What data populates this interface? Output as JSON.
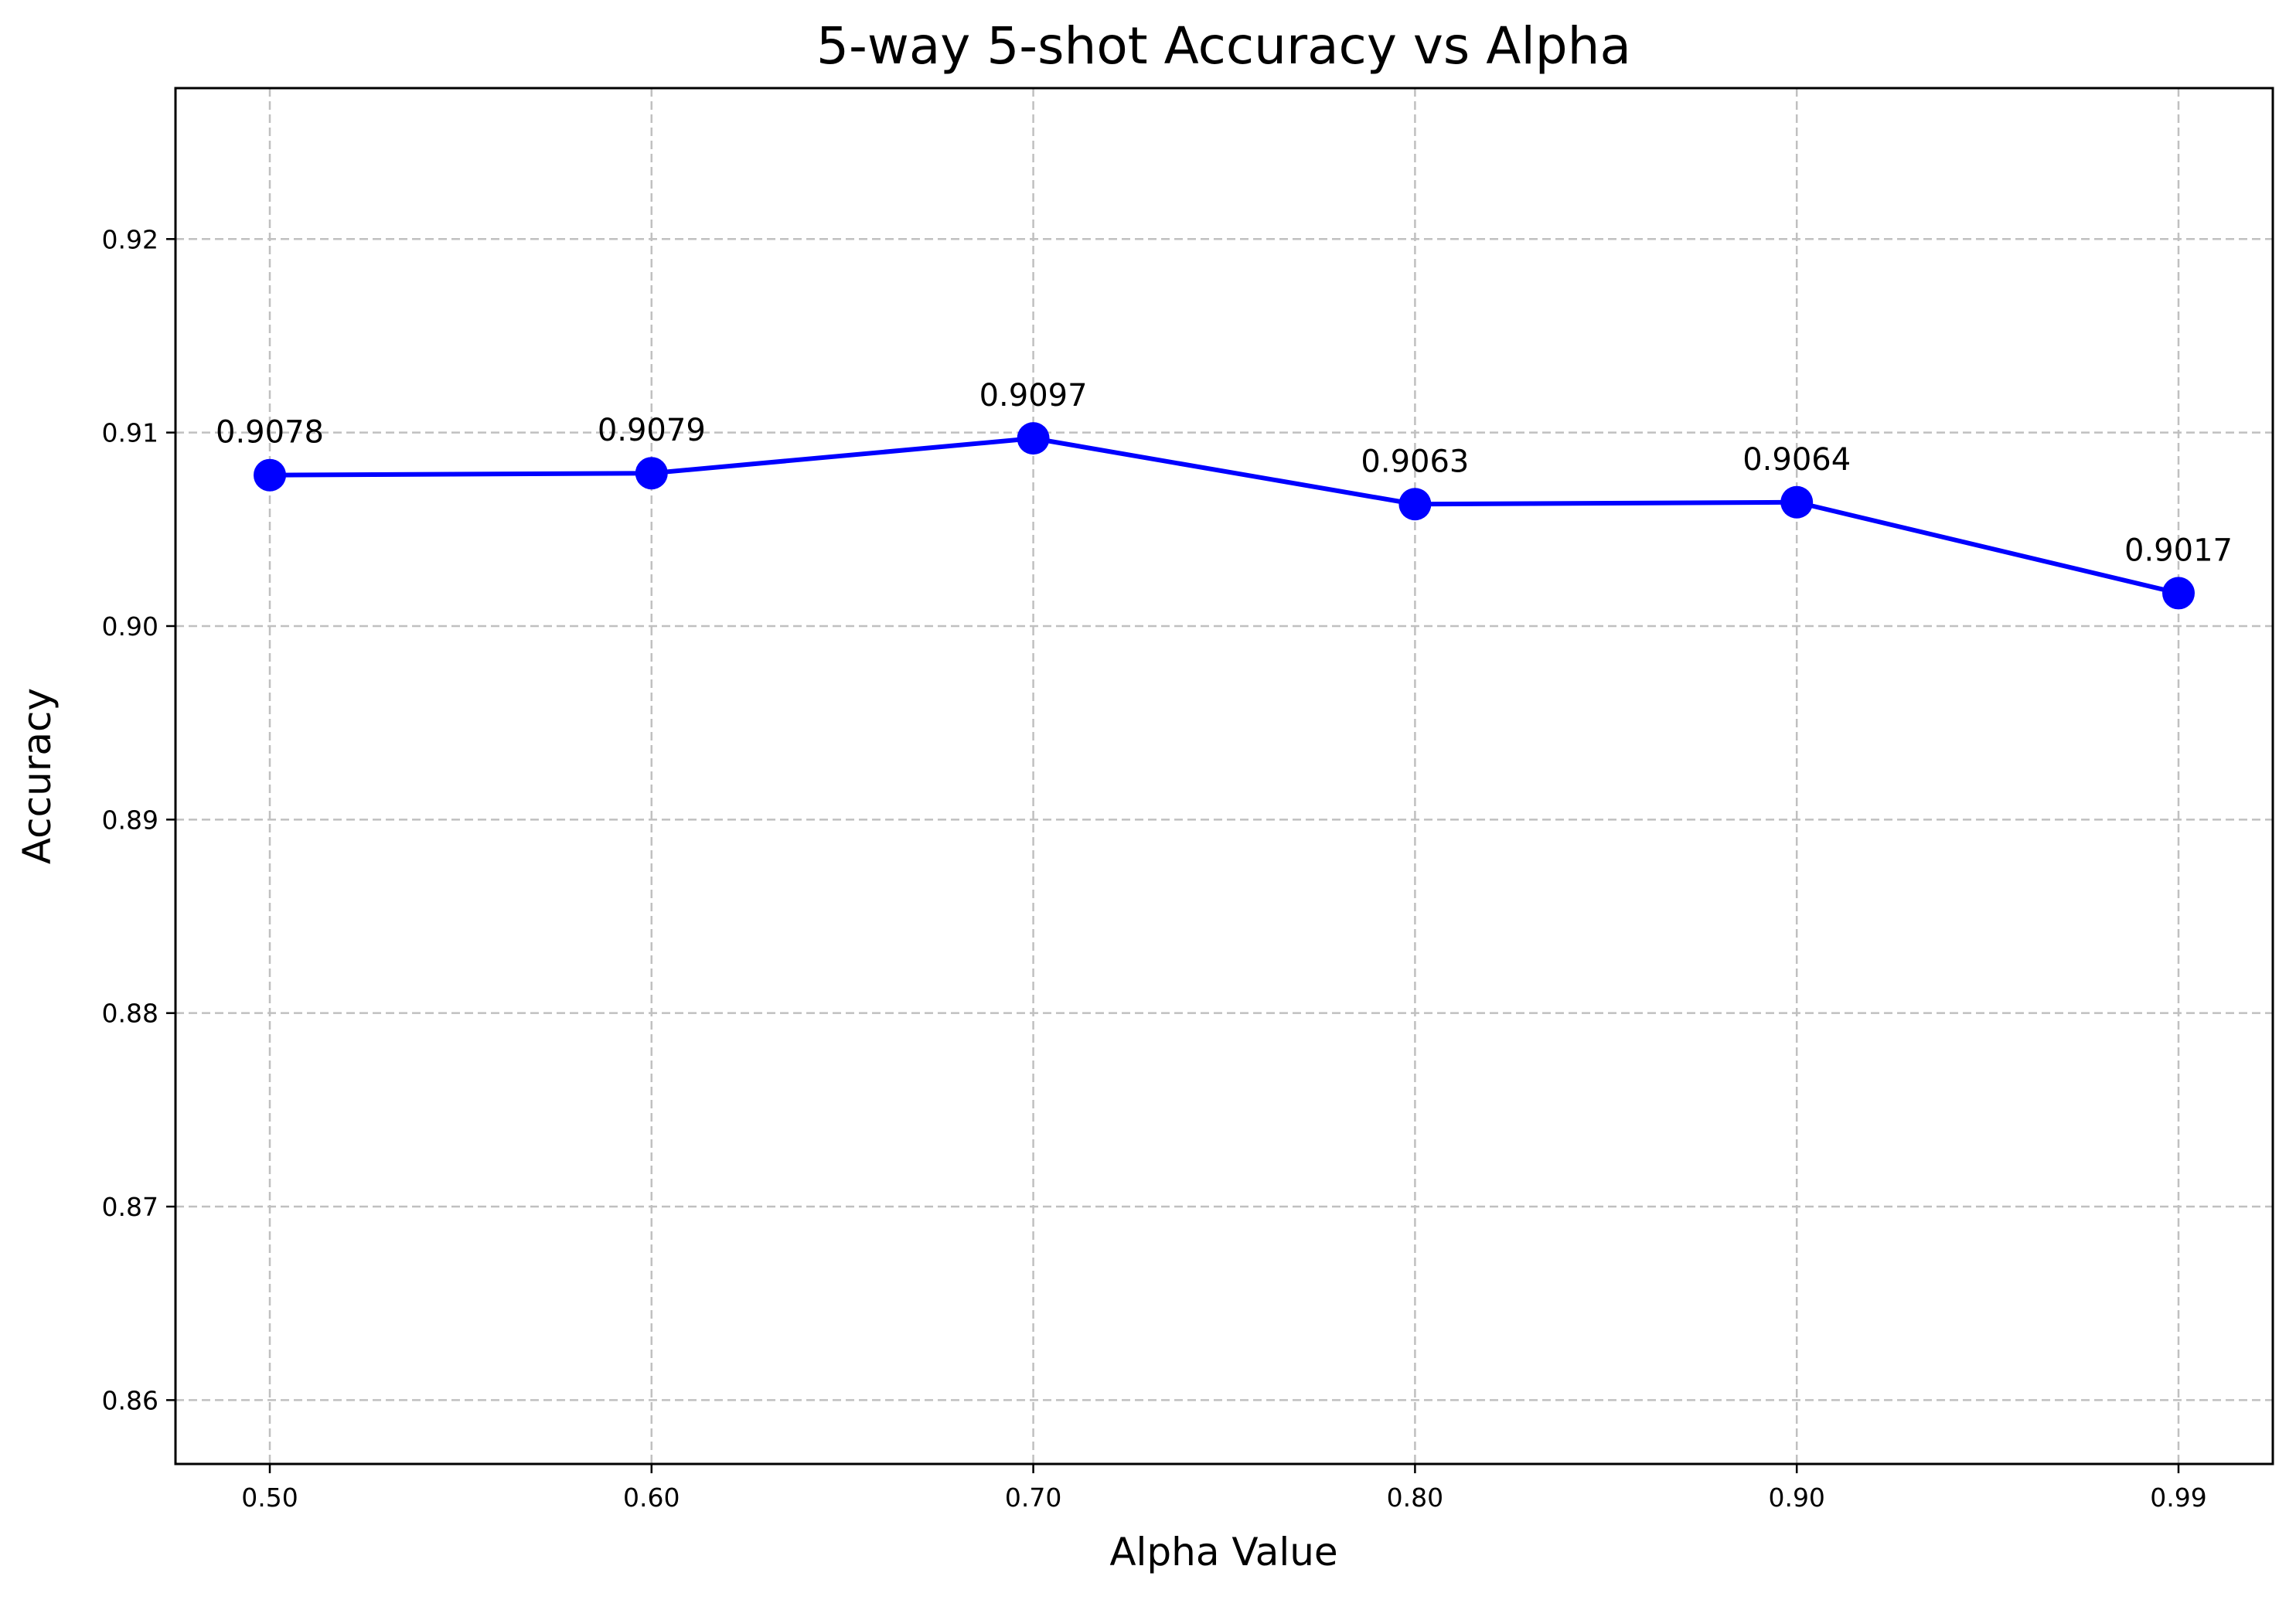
{
  "chart_data": {
    "type": "line",
    "title": "5-way 5-shot Accuracy vs Alpha",
    "xlabel": "Alpha Value",
    "ylabel": "Accuracy",
    "x_tick_labels": [
      "0.50",
      "0.60",
      "0.70",
      "0.80",
      "0.90",
      "0.99"
    ],
    "y_ticks": [
      0.86,
      0.87,
      0.88,
      0.89,
      0.9,
      0.91,
      0.92
    ],
    "y_tick_labels": [
      "0.86",
      "0.87",
      "0.88",
      "0.89",
      "0.90",
      "0.91",
      "0.92"
    ],
    "ylim": [
      0.8567,
      0.9278
    ],
    "grid": true,
    "series": [
      {
        "values": [
          0.9078,
          0.9079,
          0.9097,
          0.9063,
          0.9064,
          0.9017
        ],
        "labels": [
          "0.9078",
          "0.9079",
          "0.9097",
          "0.9063",
          "0.9064",
          "0.9017"
        ],
        "color": "#0000ff",
        "marker": "circle"
      }
    ]
  }
}
